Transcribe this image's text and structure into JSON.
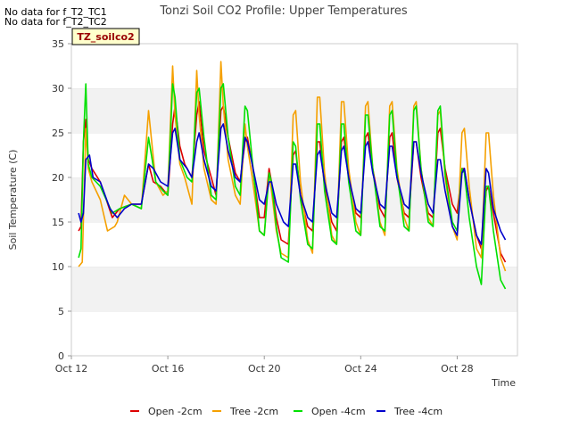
{
  "notes": [
    "No data for f_T2_TC1",
    "No data for f_T2_TC2"
  ],
  "chart_data": {
    "type": "line",
    "title": "Tonzi Soil CO2 Profile: Upper Temperatures",
    "badge": "TZ_soilco2",
    "xlabel": "Time",
    "ylabel": "Soil Temperature (C)",
    "ylim": [
      0,
      35
    ],
    "yticks": [
      0,
      5,
      10,
      15,
      20,
      25,
      30,
      35
    ],
    "xlim": [
      12,
      30.5
    ],
    "xticks": [
      {
        "value": 12,
        "label": "Oct 12"
      },
      {
        "value": 16,
        "label": "Oct 16"
      },
      {
        "value": 20,
        "label": "Oct 20"
      },
      {
        "value": 24,
        "label": "Oct 24"
      },
      {
        "value": 28,
        "label": "Oct 28"
      }
    ],
    "grid": "alternating horizontal bands",
    "legend_position": "bottom",
    "series": [
      {
        "name": "Open -2cm",
        "color": "#dd0000",
        "x": [
          12.3,
          12.4,
          12.5,
          12.6,
          12.7,
          12.85,
          13.2,
          13.7,
          14.0,
          14.5,
          14.9,
          15.2,
          15.4,
          15.7,
          16.0,
          16.2,
          16.3,
          16.5,
          16.7,
          16.9,
          17.0,
          17.2,
          17.3,
          17.5,
          17.8,
          18.0,
          18.2,
          18.3,
          18.5,
          18.8,
          19.0,
          19.2,
          19.3,
          19.5,
          19.8,
          20.0,
          20.2,
          20.3,
          20.5,
          20.7,
          21.0,
          21.2,
          21.3,
          21.5,
          21.8,
          22.0,
          22.2,
          22.3,
          22.5,
          22.8,
          23.0,
          23.2,
          23.3,
          23.5,
          23.8,
          24.0,
          24.2,
          24.3,
          24.5,
          24.8,
          25.0,
          25.2,
          25.3,
          25.5,
          25.8,
          26.0,
          26.2,
          26.3,
          26.5,
          26.8,
          27.0,
          27.2,
          27.3,
          27.5,
          27.8,
          28.0,
          28.2,
          28.3,
          28.5,
          28.8,
          29.0,
          29.2,
          29.3,
          29.5,
          29.8,
          30.0
        ],
        "y": [
          14,
          14.5,
          24,
          26.5,
          22,
          21,
          19.5,
          15.5,
          16.5,
          17,
          17,
          21.5,
          19.5,
          19,
          18,
          26,
          28,
          23.5,
          21.5,
          20.5,
          20,
          27,
          28.5,
          23,
          20,
          18,
          27.5,
          28,
          24.5,
          20.5,
          19.5,
          24,
          24.5,
          21.5,
          15.5,
          15.5,
          21,
          19.5,
          15.5,
          13,
          12.5,
          22.5,
          23,
          18,
          14.5,
          14,
          24,
          24,
          19,
          15,
          14,
          24,
          24.5,
          20,
          16,
          15.5,
          24.5,
          25,
          21,
          16.5,
          15.5,
          24.5,
          25,
          20,
          16,
          15.5,
          24,
          24,
          20,
          16,
          15.5,
          25,
          25.5,
          21,
          17,
          16,
          21,
          21,
          17.5,
          13.5,
          12,
          18.5,
          19,
          16,
          11.5,
          10.5
        ]
      },
      {
        "name": "Tree -2cm",
        "color": "#f5a000",
        "x": [
          12.3,
          12.45,
          12.6,
          12.7,
          12.85,
          13.2,
          13.5,
          13.8,
          13.9,
          14.2,
          14.5,
          14.9,
          15.2,
          15.5,
          15.8,
          16.0,
          16.2,
          16.3,
          16.5,
          16.7,
          17.0,
          17.2,
          17.3,
          17.5,
          17.8,
          18.0,
          18.2,
          18.3,
          18.5,
          18.8,
          19.0,
          19.2,
          19.3,
          19.5,
          19.8,
          20.0,
          20.2,
          20.3,
          20.5,
          20.7,
          21.0,
          21.2,
          21.3,
          21.5,
          21.8,
          22.0,
          22.2,
          22.3,
          22.5,
          22.8,
          23.0,
          23.2,
          23.3,
          23.5,
          23.8,
          24.0,
          24.2,
          24.3,
          24.5,
          24.8,
          25.0,
          25.2,
          25.3,
          25.5,
          25.8,
          26.0,
          26.2,
          26.3,
          26.5,
          26.8,
          27.0,
          27.2,
          27.3,
          27.5,
          27.8,
          28.0,
          28.2,
          28.3,
          28.5,
          28.8,
          29.0,
          29.2,
          29.3,
          29.5,
          29.8,
          30.0
        ],
        "y": [
          10,
          10.5,
          25.5,
          21,
          19.5,
          17.5,
          14,
          14.5,
          15,
          18,
          17,
          16.5,
          27.5,
          19.5,
          18,
          18.5,
          32.5,
          27,
          21.5,
          20,
          17,
          32,
          27,
          21,
          17.5,
          17,
          33,
          28,
          22,
          18,
          17,
          26,
          23.5,
          20,
          14,
          13.5,
          20.5,
          18.5,
          14,
          11.5,
          11,
          27,
          27.5,
          19.5,
          13,
          11.5,
          29,
          29,
          20.5,
          13.5,
          12.5,
          28.5,
          28.5,
          21,
          15,
          13.5,
          28,
          28.5,
          21,
          15,
          13.5,
          28,
          28.5,
          21,
          15.5,
          14,
          28,
          28.5,
          21,
          15.5,
          14.5,
          27,
          27.5,
          20,
          14.5,
          13,
          25,
          25.5,
          19,
          12,
          11,
          25,
          25,
          18,
          11,
          9.5
        ]
      },
      {
        "name": "Open -4cm",
        "color": "#00e000",
        "x": [
          12.3,
          12.4,
          12.5,
          12.6,
          12.7,
          12.85,
          13.2,
          13.7,
          14.0,
          14.5,
          14.9,
          15.2,
          15.5,
          15.8,
          16.0,
          16.2,
          16.3,
          16.5,
          16.8,
          17.0,
          17.2,
          17.3,
          17.5,
          17.8,
          18.0,
          18.2,
          18.3,
          18.5,
          18.8,
          19.0,
          19.2,
          19.3,
          19.5,
          19.8,
          20.0,
          20.2,
          20.3,
          20.5,
          20.7,
          21.0,
          21.2,
          21.3,
          21.5,
          21.8,
          22.0,
          22.2,
          22.3,
          22.5,
          22.8,
          23.0,
          23.2,
          23.3,
          23.5,
          23.8,
          24.0,
          24.2,
          24.3,
          24.5,
          24.8,
          25.0,
          25.2,
          25.3,
          25.5,
          25.8,
          26.0,
          26.2,
          26.3,
          26.5,
          26.8,
          27.0,
          27.2,
          27.3,
          27.5,
          27.8,
          28.0,
          28.2,
          28.3,
          28.5,
          28.8,
          29.0,
          29.2,
          29.3,
          29.5,
          29.8,
          30.0
        ],
        "y": [
          11,
          12,
          24,
          30.5,
          21.5,
          20,
          19,
          16,
          16.5,
          17,
          16.5,
          24.5,
          19.5,
          18.5,
          18,
          30.5,
          29,
          22,
          20,
          19.5,
          29.5,
          30,
          24.5,
          18,
          17.5,
          30,
          30.5,
          24.5,
          19,
          18,
          28,
          27.5,
          22,
          14,
          13.5,
          20.5,
          19.5,
          14.5,
          11,
          10.5,
          24,
          23.5,
          17.5,
          12.5,
          12,
          26,
          26,
          18.5,
          13,
          12.5,
          26,
          26,
          19.5,
          14,
          13.5,
          27,
          27,
          21,
          14.5,
          14,
          27,
          27.5,
          20.5,
          14.5,
          14,
          27.5,
          28,
          21,
          15,
          14.5,
          27.5,
          28,
          20.5,
          15,
          14,
          21,
          20.5,
          15.5,
          10,
          8,
          19,
          19,
          14,
          8.5,
          7.5
        ]
      },
      {
        "name": "Tree -4cm",
        "color": "#0000cc",
        "x": [
          12.3,
          12.4,
          12.5,
          12.6,
          12.75,
          12.9,
          13.2,
          13.6,
          13.9,
          14.2,
          14.5,
          14.9,
          15.2,
          15.4,
          15.7,
          16.0,
          16.2,
          16.3,
          16.5,
          16.8,
          17.0,
          17.2,
          17.3,
          17.5,
          17.8,
          18.0,
          18.2,
          18.3,
          18.5,
          18.8,
          19.0,
          19.2,
          19.3,
          19.5,
          19.8,
          20.0,
          20.2,
          20.3,
          20.5,
          20.8,
          21.0,
          21.2,
          21.3,
          21.5,
          21.8,
          22.0,
          22.2,
          22.3,
          22.5,
          22.8,
          23.0,
          23.2,
          23.3,
          23.5,
          23.8,
          24.0,
          24.2,
          24.3,
          24.5,
          24.8,
          25.0,
          25.2,
          25.3,
          25.5,
          25.8,
          26.0,
          26.2,
          26.3,
          26.5,
          26.8,
          27.0,
          27.2,
          27.3,
          27.5,
          27.8,
          28.0,
          28.2,
          28.3,
          28.5,
          28.8,
          29.0,
          29.2,
          29.3,
          29.5,
          29.8,
          30.0
        ],
        "y": [
          16,
          15,
          16,
          22,
          22.5,
          20,
          19.5,
          16.5,
          15.5,
          16.5,
          17,
          17,
          21.5,
          21,
          19.5,
          19,
          25,
          25.5,
          22,
          21,
          20,
          24,
          25,
          22,
          19,
          18.5,
          25.5,
          26,
          23,
          20,
          19.5,
          24.5,
          24,
          21.5,
          17.5,
          17,
          19.5,
          19.5,
          17,
          15,
          14.5,
          21.5,
          21.5,
          18,
          15.5,
          15,
          22.5,
          23,
          19.5,
          16,
          15.5,
          23,
          23.5,
          20,
          16.5,
          16,
          23.5,
          24,
          20.5,
          17,
          16.5,
          23.5,
          23.5,
          20,
          17,
          16.5,
          24,
          24,
          20.5,
          17,
          16,
          22,
          22,
          18.5,
          14.5,
          13.5,
          20.5,
          21,
          17.5,
          13.5,
          12.5,
          21,
          20.5,
          16.5,
          14,
          13
        ]
      }
    ]
  }
}
